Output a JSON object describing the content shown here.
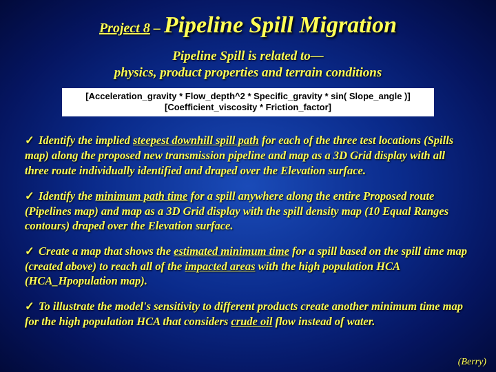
{
  "colors": {
    "text": "#ffff55",
    "bg_center": "#1a4bb8",
    "bg_mid": "#0a2a8a",
    "bg_outer": "#051560",
    "bg_edge": "#020a3a",
    "formula_bg": "#ffffff",
    "formula_text": "#000000"
  },
  "title": {
    "project": "Project 8",
    "dash": " – ",
    "main": "Pipeline Spill Migration"
  },
  "subtitle": {
    "line1": "Pipeline Spill is related to—",
    "line2": "physics, product properties and terrain conditions"
  },
  "formula": {
    "line1": "[Acceleration_gravity * Flow_depth^2 * Specific_gravity * sin( Slope_angle )]",
    "line2": "[Coefficient_viscosity * Friction_factor]"
  },
  "bullets": {
    "check": "✓",
    "items": [
      {
        "pre": " Identify the implied ",
        "u1": "steepest downhill spill path",
        "mid": " for each of the three test locations (Spills map) along the proposed new transmission pipeline and map as a 3D Grid display with all three route individually identified and draped over the Elevation surface."
      },
      {
        "pre": " Identify the ",
        "u1": "minimum path time",
        "mid": " for a spill anywhere along the entire Proposed route (Pipelines map) and map as a 3D Grid display with the spill density map (10 Equal Ranges contours) draped over the Elevation surface."
      },
      {
        "pre": " Create a map that shows the ",
        "u1": "estimated minimum time",
        "mid": " for a spill based on the spill time map (created above) to reach all of the ",
        "u2": "impacted areas",
        "post": " with the high population HCA (HCA_Hpopulation map)."
      },
      {
        "pre": " To illustrate the model's sensitivity to different products create another minimum time map for the high population HCA that considers ",
        "u1": "crude oil",
        "mid": " flow instead of water."
      }
    ]
  },
  "footer": "(Berry)"
}
